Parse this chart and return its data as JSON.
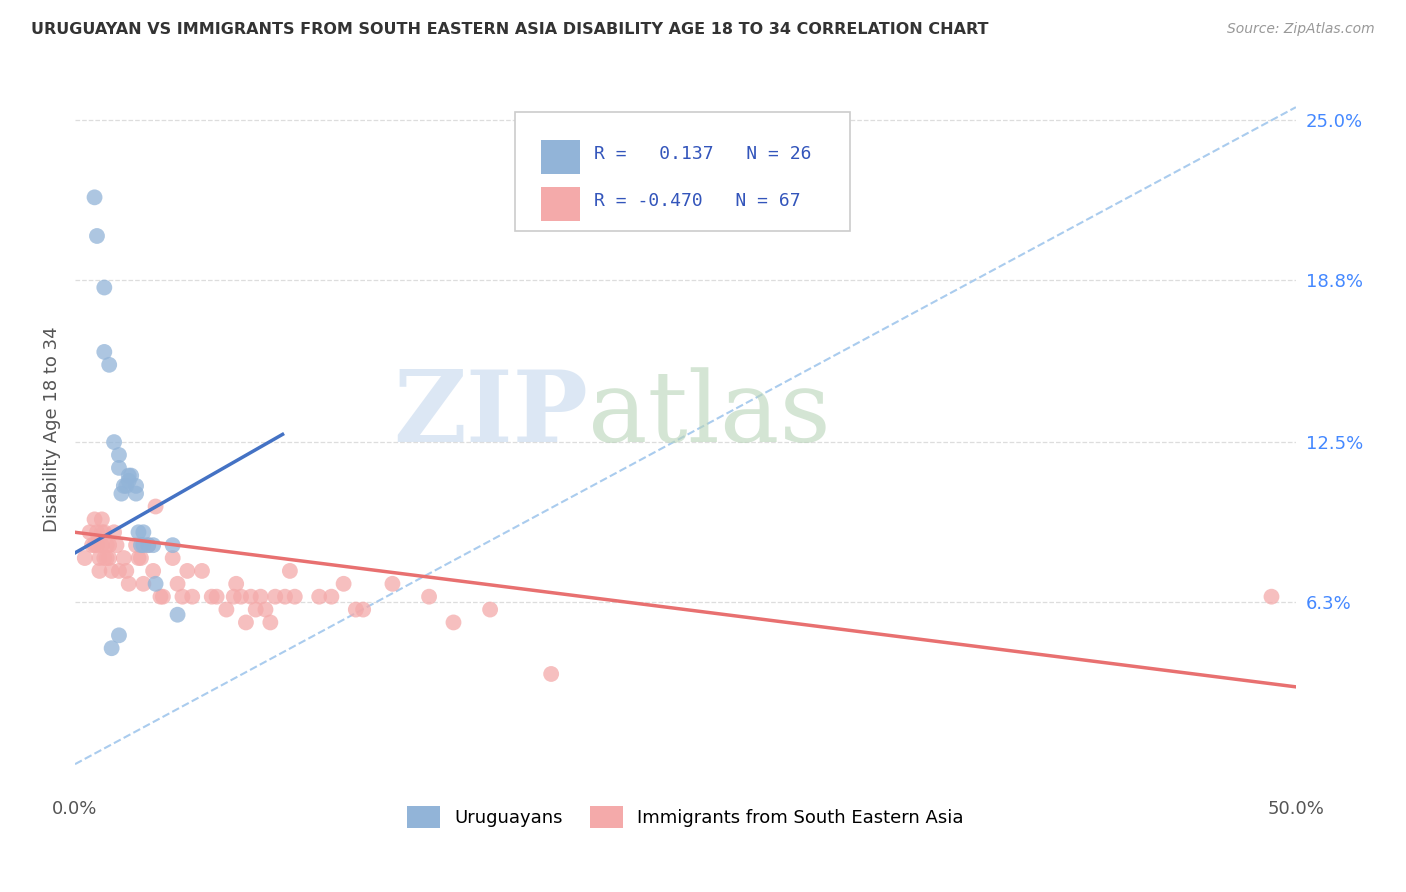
{
  "title": "URUGUAYAN VS IMMIGRANTS FROM SOUTH EASTERN ASIA DISABILITY AGE 18 TO 34 CORRELATION CHART",
  "source": "Source: ZipAtlas.com",
  "ylabel": "Disability Age 18 to 34",
  "xlim": [
    0.0,
    0.5
  ],
  "ylim": [
    -0.01,
    0.27
  ],
  "blue_color": "#92B4D8",
  "pink_color": "#F4AAAA",
  "blue_line_color": "#4472C4",
  "pink_line_color": "#E87070",
  "dashed_line_color": "#AACCEE",
  "watermark_zip": "ZIP",
  "watermark_atlas": "atlas",
  "watermark_color_zip": "#C8DCF0",
  "watermark_color_atlas": "#D0E8D0",
  "uruguayans_x": [
    0.008,
    0.009,
    0.012,
    0.012,
    0.014,
    0.016,
    0.018,
    0.018,
    0.019,
    0.02,
    0.021,
    0.022,
    0.022,
    0.023,
    0.025,
    0.025,
    0.026,
    0.027,
    0.028,
    0.028,
    0.03,
    0.032,
    0.033,
    0.04,
    0.018,
    0.042,
    0.015
  ],
  "uruguayans_y": [
    0.22,
    0.205,
    0.185,
    0.16,
    0.155,
    0.125,
    0.115,
    0.12,
    0.105,
    0.108,
    0.108,
    0.112,
    0.11,
    0.112,
    0.108,
    0.105,
    0.09,
    0.085,
    0.085,
    0.09,
    0.085,
    0.085,
    0.07,
    0.085,
    0.05,
    0.058,
    0.045
  ],
  "immigrants_x": [
    0.004,
    0.006,
    0.007,
    0.008,
    0.008,
    0.009,
    0.009,
    0.01,
    0.01,
    0.011,
    0.011,
    0.011,
    0.012,
    0.012,
    0.013,
    0.013,
    0.014,
    0.014,
    0.015,
    0.016,
    0.017,
    0.018,
    0.02,
    0.021,
    0.022,
    0.025,
    0.026,
    0.027,
    0.028,
    0.03,
    0.032,
    0.033,
    0.035,
    0.036,
    0.04,
    0.042,
    0.044,
    0.046,
    0.048,
    0.052,
    0.056,
    0.058,
    0.062,
    0.065,
    0.066,
    0.068,
    0.07,
    0.072,
    0.074,
    0.076,
    0.078,
    0.08,
    0.082,
    0.086,
    0.088,
    0.09,
    0.1,
    0.105,
    0.11,
    0.115,
    0.118,
    0.13,
    0.145,
    0.155,
    0.17,
    0.195,
    0.49
  ],
  "immigrants_y": [
    0.08,
    0.09,
    0.085,
    0.085,
    0.095,
    0.09,
    0.085,
    0.08,
    0.075,
    0.095,
    0.09,
    0.085,
    0.08,
    0.09,
    0.085,
    0.08,
    0.085,
    0.08,
    0.075,
    0.09,
    0.085,
    0.075,
    0.08,
    0.075,
    0.07,
    0.085,
    0.08,
    0.08,
    0.07,
    0.085,
    0.075,
    0.1,
    0.065,
    0.065,
    0.08,
    0.07,
    0.065,
    0.075,
    0.065,
    0.075,
    0.065,
    0.065,
    0.06,
    0.065,
    0.07,
    0.065,
    0.055,
    0.065,
    0.06,
    0.065,
    0.06,
    0.055,
    0.065,
    0.065,
    0.075,
    0.065,
    0.065,
    0.065,
    0.07,
    0.06,
    0.06,
    0.07,
    0.065,
    0.055,
    0.06,
    0.035,
    0.065
  ],
  "blue_line_x": [
    0.0,
    0.085
  ],
  "blue_line_y_start": 0.082,
  "blue_line_y_end": 0.128,
  "pink_line_x_start": 0.0,
  "pink_line_x_end": 0.5,
  "pink_line_y_start": 0.09,
  "pink_line_y_end": 0.03,
  "dash_line_x_start": 0.0,
  "dash_line_x_end": 0.5,
  "dash_line_y_start": 0.0,
  "dash_line_y_end": 0.255
}
